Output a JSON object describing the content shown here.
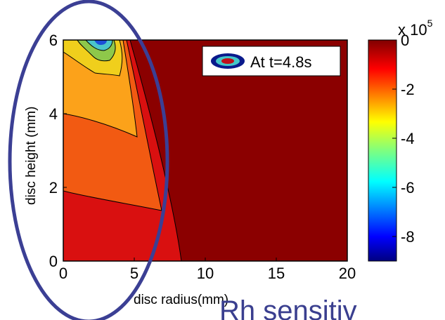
{
  "chart_data": {
    "type": "contour",
    "xlabel": "disc radius(mm)",
    "ylabel": "disc height (mm)",
    "xlim": [
      0,
      20
    ],
    "ylim": [
      0,
      6
    ],
    "xticks": [
      "0",
      "5",
      "10",
      "15",
      "20"
    ],
    "yticks": [
      "0",
      "2",
      "4",
      "6"
    ],
    "legend": {
      "label": "At t=4.8s",
      "position": "top-right"
    },
    "colorbar": {
      "multiplier_base": "x 10",
      "multiplier_exp": "5",
      "ticks": [
        "0",
        "-2",
        "-4",
        "-6",
        "-8"
      ],
      "range": [
        -9,
        0
      ]
    },
    "grid": false
  },
  "overlay_text": "Rh sensitiv"
}
